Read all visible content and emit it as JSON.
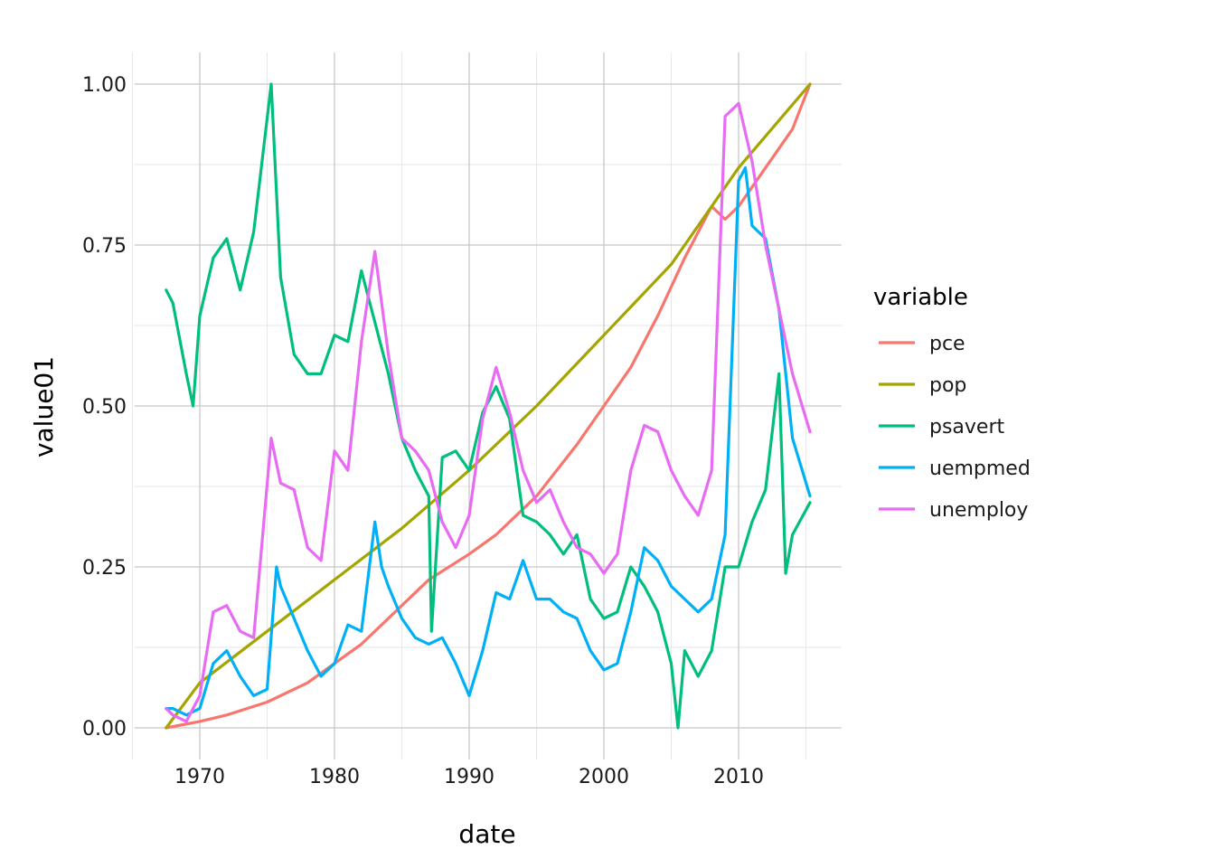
{
  "chart_data": {
    "type": "line",
    "title": "",
    "xlabel": "date",
    "ylabel": "value01",
    "xlim": [
      1967.5,
      2015.3
    ],
    "ylim": [
      0,
      1
    ],
    "x_ticks": [
      1970,
      1980,
      1990,
      2000,
      2010
    ],
    "x_tick_labels": [
      "1970",
      "1980",
      "1990",
      "2000",
      "2010"
    ],
    "y_ticks": [
      0,
      0.25,
      0.5,
      0.75,
      1
    ],
    "y_tick_labels": [
      "0.00",
      "0.25",
      "0.50",
      "0.75",
      "1.00"
    ],
    "grid": true,
    "legend": {
      "title": "variable",
      "placement": "right"
    },
    "series": [
      {
        "name": "pce",
        "color": "#F8766D",
        "x": [
          1967.5,
          1970,
          1972,
          1975,
          1978,
          1980,
          1982,
          1985,
          1987,
          1990,
          1992,
          1995,
          1998,
          2000,
          2002,
          2004,
          2006,
          2008,
          2009,
          2010,
          2012,
          2014,
          2015.3
        ],
        "y": [
          0,
          0.01,
          0.02,
          0.04,
          0.07,
          0.1,
          0.13,
          0.19,
          0.23,
          0.27,
          0.3,
          0.36,
          0.44,
          0.5,
          0.56,
          0.64,
          0.73,
          0.81,
          0.79,
          0.81,
          0.87,
          0.93,
          1.0
        ]
      },
      {
        "name": "pop",
        "color": "#A3A500",
        "x": [
          1967.5,
          1970,
          1975,
          1980,
          1985,
          1990,
          1995,
          2000,
          2005,
          2010,
          2015.3
        ],
        "y": [
          0,
          0.07,
          0.15,
          0.23,
          0.31,
          0.4,
          0.5,
          0.61,
          0.72,
          0.87,
          1.0
        ]
      },
      {
        "name": "psavert",
        "color": "#00BF7D",
        "x": [
          1967.5,
          1968,
          1969,
          1969.5,
          1970,
          1971,
          1972,
          1973,
          1974,
          1975.3,
          1976,
          1977,
          1978,
          1979,
          1980,
          1981,
          1982,
          1983,
          1984,
          1985,
          1986,
          1987,
          1987.2,
          1988,
          1989,
          1990,
          1991,
          1992,
          1993,
          1994,
          1995,
          1996,
          1997,
          1998,
          1999,
          2000,
          2001,
          2002,
          2003,
          2004,
          2005,
          2005.5,
          2006,
          2007,
          2008,
          2009,
          2010,
          2011,
          2012,
          2013,
          2013.5,
          2014,
          2015.3
        ],
        "y": [
          0.68,
          0.66,
          0.55,
          0.5,
          0.64,
          0.73,
          0.76,
          0.68,
          0.77,
          1.0,
          0.7,
          0.58,
          0.55,
          0.55,
          0.61,
          0.6,
          0.71,
          0.63,
          0.55,
          0.45,
          0.4,
          0.36,
          0.15,
          0.42,
          0.43,
          0.4,
          0.49,
          0.53,
          0.48,
          0.33,
          0.32,
          0.3,
          0.27,
          0.3,
          0.2,
          0.17,
          0.18,
          0.25,
          0.22,
          0.18,
          0.1,
          0.0,
          0.12,
          0.08,
          0.12,
          0.25,
          0.25,
          0.32,
          0.37,
          0.55,
          0.24,
          0.3,
          0.35
        ]
      },
      {
        "name": "uempmed",
        "color": "#00B0F6",
        "x": [
          1967.5,
          1968,
          1969,
          1970,
          1971,
          1972,
          1973,
          1974,
          1975,
          1975.7,
          1976,
          1977,
          1978,
          1979,
          1980,
          1981,
          1982,
          1983,
          1983.5,
          1984,
          1985,
          1986,
          1987,
          1988,
          1989,
          1990,
          1991,
          1992,
          1993,
          1994,
          1995,
          1996,
          1997,
          1998,
          1999,
          2000,
          2001,
          2002,
          2003,
          2004,
          2005,
          2006,
          2007,
          2008,
          2009,
          2010,
          2010.5,
          2011,
          2012,
          2013,
          2014,
          2015.3
        ],
        "y": [
          0.03,
          0.03,
          0.02,
          0.03,
          0.1,
          0.12,
          0.08,
          0.05,
          0.06,
          0.25,
          0.22,
          0.17,
          0.12,
          0.08,
          0.1,
          0.16,
          0.15,
          0.32,
          0.25,
          0.22,
          0.17,
          0.14,
          0.13,
          0.14,
          0.1,
          0.05,
          0.12,
          0.21,
          0.2,
          0.26,
          0.2,
          0.2,
          0.18,
          0.17,
          0.12,
          0.09,
          0.1,
          0.18,
          0.28,
          0.26,
          0.22,
          0.2,
          0.18,
          0.2,
          0.3,
          0.85,
          0.87,
          0.78,
          0.76,
          0.65,
          0.45,
          0.36
        ]
      },
      {
        "name": "unemploy",
        "color": "#E76BF3",
        "x": [
          1967.5,
          1968,
          1969,
          1970,
          1971,
          1972,
          1973,
          1974,
          1975.3,
          1976,
          1977,
          1978,
          1979,
          1980,
          1981,
          1982,
          1983,
          1984,
          1985,
          1986,
          1987,
          1988,
          1989,
          1990,
          1991,
          1992,
          1993,
          1994,
          1995,
          1996,
          1997,
          1998,
          1999,
          2000,
          2001,
          2002,
          2003,
          2004,
          2005,
          2006,
          2007,
          2008,
          2009,
          2010,
          2011,
          2012,
          2013,
          2014,
          2015.3
        ],
        "y": [
          0.03,
          0.02,
          0.01,
          0.05,
          0.18,
          0.19,
          0.15,
          0.14,
          0.45,
          0.38,
          0.37,
          0.28,
          0.26,
          0.43,
          0.4,
          0.6,
          0.74,
          0.58,
          0.45,
          0.43,
          0.4,
          0.32,
          0.28,
          0.33,
          0.48,
          0.56,
          0.49,
          0.4,
          0.35,
          0.37,
          0.32,
          0.28,
          0.27,
          0.24,
          0.27,
          0.4,
          0.47,
          0.46,
          0.4,
          0.36,
          0.33,
          0.4,
          0.95,
          0.97,
          0.88,
          0.75,
          0.65,
          0.55,
          0.46
        ]
      }
    ]
  }
}
